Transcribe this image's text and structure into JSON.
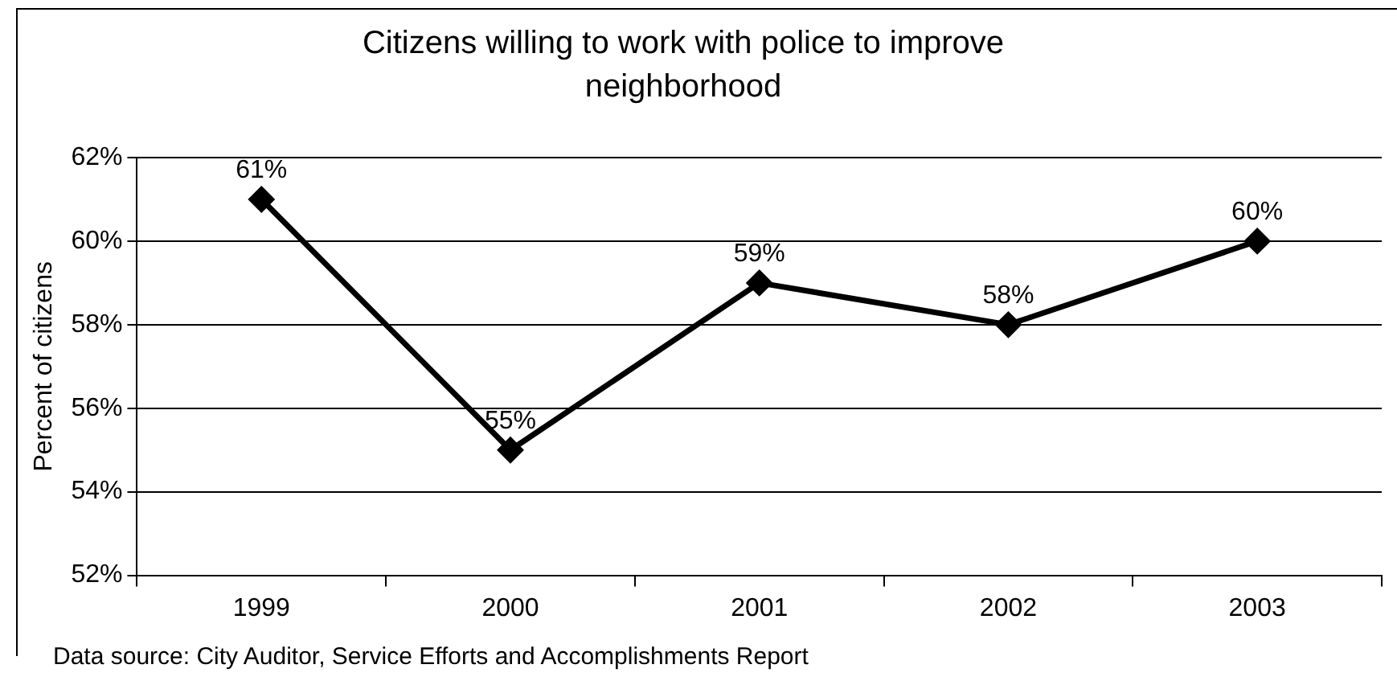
{
  "chart_data": {
    "type": "line",
    "title": "Citizens willing to work with police to improve neighborhood",
    "ylabel": "Percent of citizens",
    "categories": [
      "1999",
      "2000",
      "2001",
      "2002",
      "2003"
    ],
    "series": [
      {
        "color": "#000000",
        "values": [
          61,
          55,
          59,
          58,
          60
        ],
        "value_labels": [
          "61%",
          "55%",
          "59%",
          "58%",
          "60%"
        ]
      }
    ],
    "ylim": [
      52,
      62
    ],
    "yticks": [
      {
        "value": 52,
        "label": "52%"
      },
      {
        "value": 54,
        "label": "54%"
      },
      {
        "value": 56,
        "label": "56%"
      },
      {
        "value": 58,
        "label": "58%"
      },
      {
        "value": 60,
        "label": "60%"
      },
      {
        "value": 62,
        "label": "62%"
      }
    ],
    "grid": "y",
    "legend": false,
    "marker": "diamond",
    "line_style": "solid",
    "annotations": [
      "Data source: City Auditor, Service Efforts and Accomplishments Report"
    ]
  }
}
